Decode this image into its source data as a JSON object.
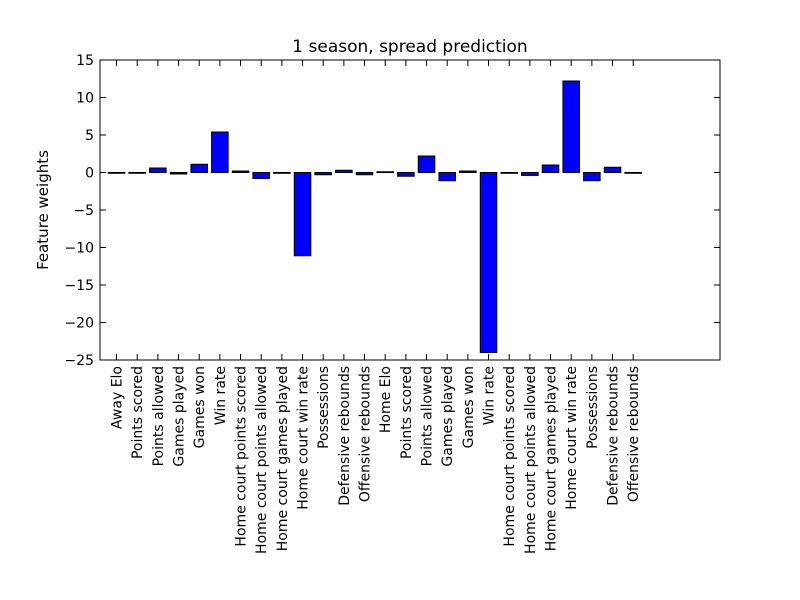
{
  "chart_data": {
    "type": "bar",
    "title": "1 season, spread prediction",
    "xlabel": "",
    "ylabel": "Feature weights",
    "ylim": [
      -25,
      15
    ],
    "yticks": [
      15,
      10,
      5,
      0,
      -5,
      -10,
      -15,
      -20,
      -25
    ],
    "ytick_labels": [
      "15",
      "10",
      "5",
      "0",
      "−5",
      "−10",
      "−15",
      "−20",
      "−25"
    ],
    "xlim": [
      0,
      30
    ],
    "bar_color": "#0000ff",
    "grid": false,
    "categories": [
      "Away Elo",
      "Points scored",
      "Points allowed",
      "Games played",
      "Games won",
      "Win rate",
      "Home court points scored",
      "Home court points allowed",
      "Home court games played",
      "Home court win rate",
      "Possessions",
      "Defensive rebounds",
      "Offensive rebounds",
      "Home Elo",
      "Points scored",
      "Points allowed",
      "Games played",
      "Games won",
      "Win rate",
      "Home court points scored",
      "Home court points allowed",
      "Home court games played",
      "Home court win rate",
      "Possessions",
      "Defensive rebounds",
      "Offensive rebounds"
    ],
    "values": [
      0.0,
      0.0,
      0.6,
      -0.2,
      1.1,
      5.4,
      0.2,
      -0.8,
      -0.1,
      -11.1,
      -0.3,
      0.3,
      -0.3,
      0.1,
      -0.5,
      2.2,
      -1.1,
      0.2,
      -24.0,
      -0.1,
      -0.4,
      1.0,
      12.2,
      -1.1,
      0.7,
      -0.1
    ]
  }
}
